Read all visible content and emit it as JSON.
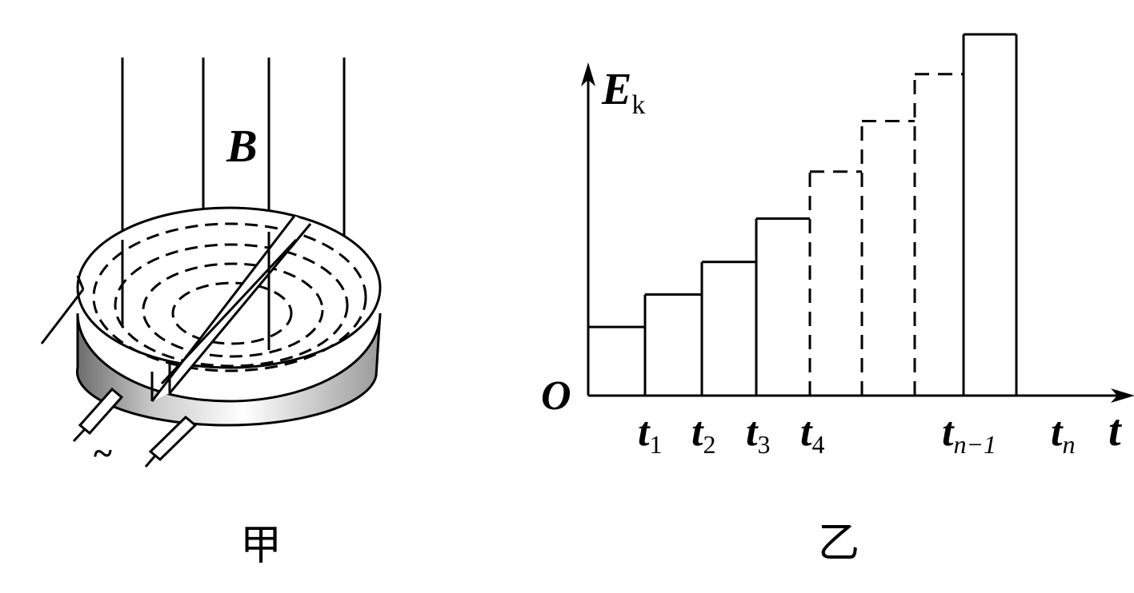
{
  "figure_a": {
    "field_label": "B",
    "ac_symbol": "~",
    "caption": "甲"
  },
  "figure_b": {
    "caption": "乙",
    "y_axis": {
      "symbol": "E",
      "subscript": "k"
    },
    "x_axis": {
      "symbol": "t"
    },
    "origin": "O",
    "ticks": [
      {
        "base": "t",
        "sub": "1"
      },
      {
        "base": "t",
        "sub": "2"
      },
      {
        "base": "t",
        "sub": "3"
      },
      {
        "base": "t",
        "sub": "4"
      },
      {
        "base": "t",
        "sub": "n−1"
      },
      {
        "base": "t",
        "sub": "n"
      }
    ],
    "steps": [
      {
        "interval": "0–t1",
        "relative_level": 0.19,
        "style": "solid"
      },
      {
        "interval": "t1–t2",
        "relative_level": 0.28,
        "style": "solid"
      },
      {
        "interval": "t2–t3",
        "relative_level": 0.37,
        "style": "solid"
      },
      {
        "interval": "t3–t4",
        "relative_level": 0.49,
        "style": "solid"
      },
      {
        "interval": "t4–…",
        "relative_level": 0.62,
        "style": "dashed"
      },
      {
        "interval": "…",
        "relative_level": 0.76,
        "style": "dashed"
      },
      {
        "interval": "…–t(n−1)",
        "relative_level": 0.89,
        "style": "dashed"
      },
      {
        "interval": "t(n−1)–tn",
        "relative_level": 1.0,
        "style": "solid"
      }
    ]
  }
}
